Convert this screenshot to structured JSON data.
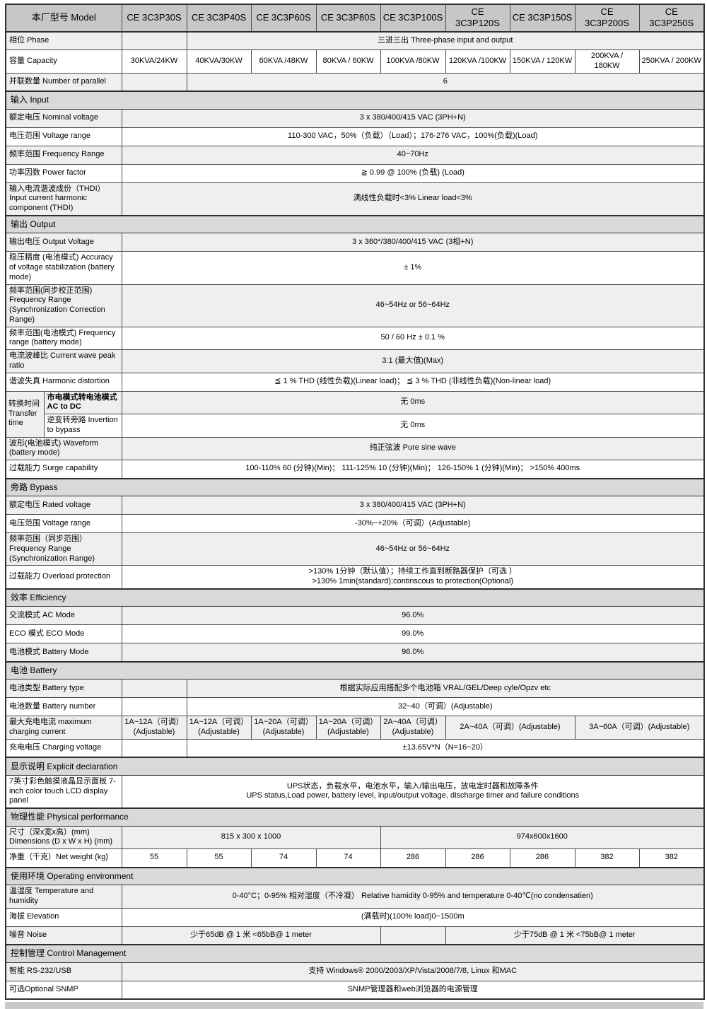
{
  "table": {
    "rows": [
      {
        "kind": "header",
        "label": "本厂型号 Model",
        "models": [
          "CE 3C3P30S",
          "CE 3C3P40S",
          "CE 3C3P60S",
          "CE 3C3P80S",
          "CE 3C3P100S",
          "CE 3C3P120S",
          "CE 3C3P150S",
          "CE 3C3P200S",
          "CE 3C3P250S"
        ]
      },
      {
        "kind": "data",
        "label": "相位 Phase",
        "shade": "g",
        "cells": [
          {
            "t": "",
            "s": 1
          },
          {
            "t": "三进三出 Three-phase input and output",
            "s": 8
          }
        ]
      },
      {
        "kind": "data",
        "label": "容量 Capacity",
        "shade": "w",
        "cells": [
          {
            "t": "30KVA/24KW",
            "s": 1
          },
          {
            "t": "40KVA/30KW",
            "s": 1
          },
          {
            "t": "60KVA /48KW",
            "s": 1
          },
          {
            "t": "80KVA / 60KW",
            "s": 1
          },
          {
            "t": "100KVA /80KW",
            "s": 1
          },
          {
            "t": "120KVA /100KW",
            "s": 1
          },
          {
            "t": "150KVA / 120KW",
            "s": 1
          },
          {
            "t": "200KVA / 180KW",
            "s": 1
          },
          {
            "t": "250KVA / 200KW",
            "s": 1
          }
        ]
      },
      {
        "kind": "data",
        "label": "并联数量 Number of parallel",
        "shade": "g",
        "cells": [
          {
            "t": "",
            "s": 1
          },
          {
            "t": "6",
            "s": 8
          }
        ]
      },
      {
        "kind": "section",
        "label": "输入 Input"
      },
      {
        "kind": "data",
        "label": "额定电压 Nominal voltage",
        "shade": "g",
        "cells": [
          {
            "t": "3 x 380/400/415 VAC (3PH+N)",
            "s": 9
          }
        ]
      },
      {
        "kind": "data",
        "label": "电压范围 Voltage range",
        "shade": "w",
        "cells": [
          {
            "t": "110-300 VAC，50%（负载）（Load）；176-276 VAC，100%(负载)(Load)",
            "s": 9
          }
        ]
      },
      {
        "kind": "data",
        "label": "频率范围 Frequency Range",
        "shade": "g",
        "cells": [
          {
            "t": "40~70Hz",
            "s": 9
          }
        ]
      },
      {
        "kind": "data",
        "label": "功率因数 Power factor",
        "shade": "w",
        "cells": [
          {
            "t": "≧ 0.99 @ 100% (负载) (Load)",
            "s": 9
          }
        ]
      },
      {
        "kind": "data",
        "label": "输入电流谐波成份（THDI） Input current harmonic component (THDI)",
        "shade": "g",
        "cells": [
          {
            "t": "满线性负载时<3% Linear load<3%",
            "s": 9
          }
        ]
      },
      {
        "kind": "section",
        "label": "输出 Output"
      },
      {
        "kind": "data",
        "label": "输出电压 Output Voltage",
        "shade": "g",
        "cells": [
          {
            "t": "3 x 360*/380/400/415 VAC (3相+N)",
            "s": 9
          }
        ]
      },
      {
        "kind": "data",
        "label": "稳压精度 (电池模式) Accuracy of voltage stabilization (battery mode)",
        "shade": "w",
        "cells": [
          {
            "t": "± 1%",
            "s": 9
          }
        ]
      },
      {
        "kind": "data",
        "label": "频率范围(同步校正范围) Frequency Range (Synchronization Correction Range)",
        "shade": "g",
        "tall": true,
        "cells": [
          {
            "t": "46~54Hz or 56~64Hz",
            "s": 9
          }
        ]
      },
      {
        "kind": "data",
        "label": "频率范围(电池模式) Frequency range (battery mode)",
        "shade": "w",
        "cells": [
          {
            "t": "50 / 60 Hz ± 0.1 %",
            "s": 9
          }
        ]
      },
      {
        "kind": "data",
        "label": "电流波峰比 Current wave peak ratio",
        "shade": "g",
        "cells": [
          {
            "t": "3:1 (最大值)(Max)",
            "s": 9
          }
        ]
      },
      {
        "kind": "data",
        "label": "谐波失真 Harmonic distortion",
        "shade": "w",
        "cells": [
          {
            "t": "≦ 1 % THD (线性负载)(Linear load)；  ≦ 3 % THD (非线性负载)(Non-linear load)",
            "s": 9
          }
        ]
      },
      {
        "kind": "group",
        "group_label": "转换时间\nTransfer time",
        "rows": [
          {
            "sub": "市电模式转电池模式\nAC to DC",
            "b": true,
            "value": "无  0ms",
            "shade": "g"
          },
          {
            "sub": "逆变转旁路 Invertion to bypass",
            "b": false,
            "value": "无  0ms",
            "shade": "w"
          }
        ]
      },
      {
        "kind": "data",
        "label": "波形(电池模式) Waveform (battery mode)",
        "shade": "g",
        "cells": [
          {
            "t": "纯正弦波 Pure sine wave",
            "s": 9
          }
        ]
      },
      {
        "kind": "data",
        "label": "过载能力 Surge capability",
        "shade": "w",
        "cells": [
          {
            "t": "100-110%  60 (分钟)(Min)；  111-125% 10 (分钟)(Min)；  126-150%  1 (分钟)(Min)；  >150%  400ms",
            "s": 9
          }
        ]
      },
      {
        "kind": "section",
        "label": "旁路 Bypass"
      },
      {
        "kind": "data",
        "label": "额定电压 Rated voltage",
        "shade": "g",
        "cells": [
          {
            "t": "3 x 380/400/415 VAC (3PH+N)",
            "s": 9
          }
        ]
      },
      {
        "kind": "data",
        "label": "电压范围 Voltage range",
        "shade": "w",
        "cells": [
          {
            "t": "-30%~+20%（可调）(Adjustable)",
            "s": 9
          }
        ]
      },
      {
        "kind": "data",
        "label": "频率范围（同步范围） Frequency Range (Synchronization Range)",
        "shade": "g",
        "cells": [
          {
            "t": "46~54Hz or 56~64Hz",
            "s": 9
          }
        ]
      },
      {
        "kind": "data",
        "label": "过载能力 Overload protection",
        "shade": "w",
        "cells": [
          {
            "t": ">130% 1分钟（默认值）；持续工作直到断路器保护（可选 ）\n>130% 1min(standard);continscous to protection(Optional)",
            "s": 9
          }
        ]
      },
      {
        "kind": "section",
        "label": "效率 Efficiency"
      },
      {
        "kind": "data",
        "label": "交流模式 AC Mode",
        "shade": "g",
        "cells": [
          {
            "t": "96.0%",
            "s": 9
          }
        ]
      },
      {
        "kind": "data",
        "label": "ECO 模式 ECO Mode",
        "shade": "w",
        "cells": [
          {
            "t": "99.0%",
            "s": 9
          }
        ]
      },
      {
        "kind": "data",
        "label": "电池模式 Battery Mode",
        "shade": "g",
        "cells": [
          {
            "t": "96.0%",
            "s": 9
          }
        ]
      },
      {
        "kind": "section",
        "label": "电池 Battery"
      },
      {
        "kind": "data",
        "label": "电池类型 Battery type",
        "shade": "g",
        "cells": [
          {
            "t": "",
            "s": 1
          },
          {
            "t": "根据实际应用搭配多个电池箱 VRAL/GEL/Deep cyle/Opzv etc",
            "s": 8
          }
        ]
      },
      {
        "kind": "data",
        "label": "电池数量 Battery number",
        "shade": "w",
        "cells": [
          {
            "t": "",
            "s": 1
          },
          {
            "t": "32~40（可调）(Adjustable)",
            "s": 8
          }
        ]
      },
      {
        "kind": "data",
        "label": "最大充电电流 maximum charging current",
        "shade": "g",
        "cells": [
          {
            "t": "1A~12A（可调）(Adjustable)",
            "s": 1
          },
          {
            "t": "1A~12A（可调）(Adjustable)",
            "s": 1
          },
          {
            "t": "1A~20A（可调）(Adjustable)",
            "s": 1
          },
          {
            "t": "1A~20A（可调）(Adjustable)",
            "s": 1
          },
          {
            "t": "2A~40A（可调）(Adjustable)",
            "s": 1
          },
          {
            "t": "2A~40A（可调）(Adjustable)",
            "s": 2
          },
          {
            "t": "3A~60A（可调）(Adjustable)",
            "s": 2
          }
        ]
      },
      {
        "kind": "data",
        "label": "充电电压 Charging voltage",
        "shade": "w",
        "cells": [
          {
            "t": "",
            "s": 1
          },
          {
            "t": "±13.65V*N（N=16~20）",
            "s": 8
          }
        ]
      },
      {
        "kind": "section",
        "label": "显示说明 Explicit declaration"
      },
      {
        "kind": "data",
        "label": "7英寸彩色触摸液晶显示面板 7-inch color touch LCD display panel",
        "shade": "w",
        "cells": [
          {
            "t": "UPS状态，负载水平，电池水平，输入/输出电压，放电定时器和故障条件\nUPS status,Load power, battery level, input/output voltage, discharge timer and failure conditions",
            "s": 9
          }
        ]
      },
      {
        "kind": "section",
        "label": "物理性能 Physical performance"
      },
      {
        "kind": "data",
        "label": "尺寸（深x宽x高）(mm) Dimensions (D x W x H) (mm)",
        "shade": "g",
        "cells": [
          {
            "t": "815 x 300 x 1000",
            "s": 4
          },
          {
            "t": "974x600x1600",
            "s": 5
          }
        ]
      },
      {
        "kind": "data",
        "label": "净重（千克）Net weight (kg)",
        "shade": "w",
        "cells": [
          {
            "t": "55",
            "s": 1
          },
          {
            "t": "55",
            "s": 1
          },
          {
            "t": "74",
            "s": 1
          },
          {
            "t": "74",
            "s": 1
          },
          {
            "t": "286",
            "s": 1
          },
          {
            "t": "286",
            "s": 1
          },
          {
            "t": "286",
            "s": 1
          },
          {
            "t": "382",
            "s": 1
          },
          {
            "t": "382",
            "s": 1
          }
        ]
      },
      {
        "kind": "section",
        "label": "使用环境 Operating environment"
      },
      {
        "kind": "data",
        "label": "温湿度 Temperature and humidity",
        "shade": "g",
        "cells": [
          {
            "t": "0-40°C；0-95% 相对湿度（不冷凝） Relative hamidity 0-95% and temperature 0-40℃(no condensatien)",
            "s": 9
          }
        ]
      },
      {
        "kind": "data",
        "label": "海拔 Elevation",
        "shade": "w",
        "cells": [
          {
            "t": "(满载时)(100% load)0~1500m",
            "s": 9
          }
        ]
      },
      {
        "kind": "data",
        "label": "噪音 Noise",
        "shade": "g",
        "cells": [
          {
            "t": "少于65dB @ 1 米 <65bB@ 1 meter",
            "s": 4
          },
          {
            "t": "",
            "s": 1
          },
          {
            "t": "少于75dB @ 1 米 <75bB@ 1 meter",
            "s": 4
          }
        ]
      },
      {
        "kind": "section",
        "label": "控制管理 Control Management"
      },
      {
        "kind": "data",
        "label": "智能 RS-232/USB",
        "shade": "g",
        "cells": [
          {
            "t": "支持 Windows® 2000/2003/XP/Vista/2008/7/8, Linux 和MAC",
            "s": 9
          }
        ]
      },
      {
        "kind": "data",
        "label": "可选Optional SNMP",
        "shade": "w",
        "cells": [
          {
            "t": "SNMP管理器和web浏览器的电源管理",
            "s": 9
          }
        ]
      }
    ]
  }
}
